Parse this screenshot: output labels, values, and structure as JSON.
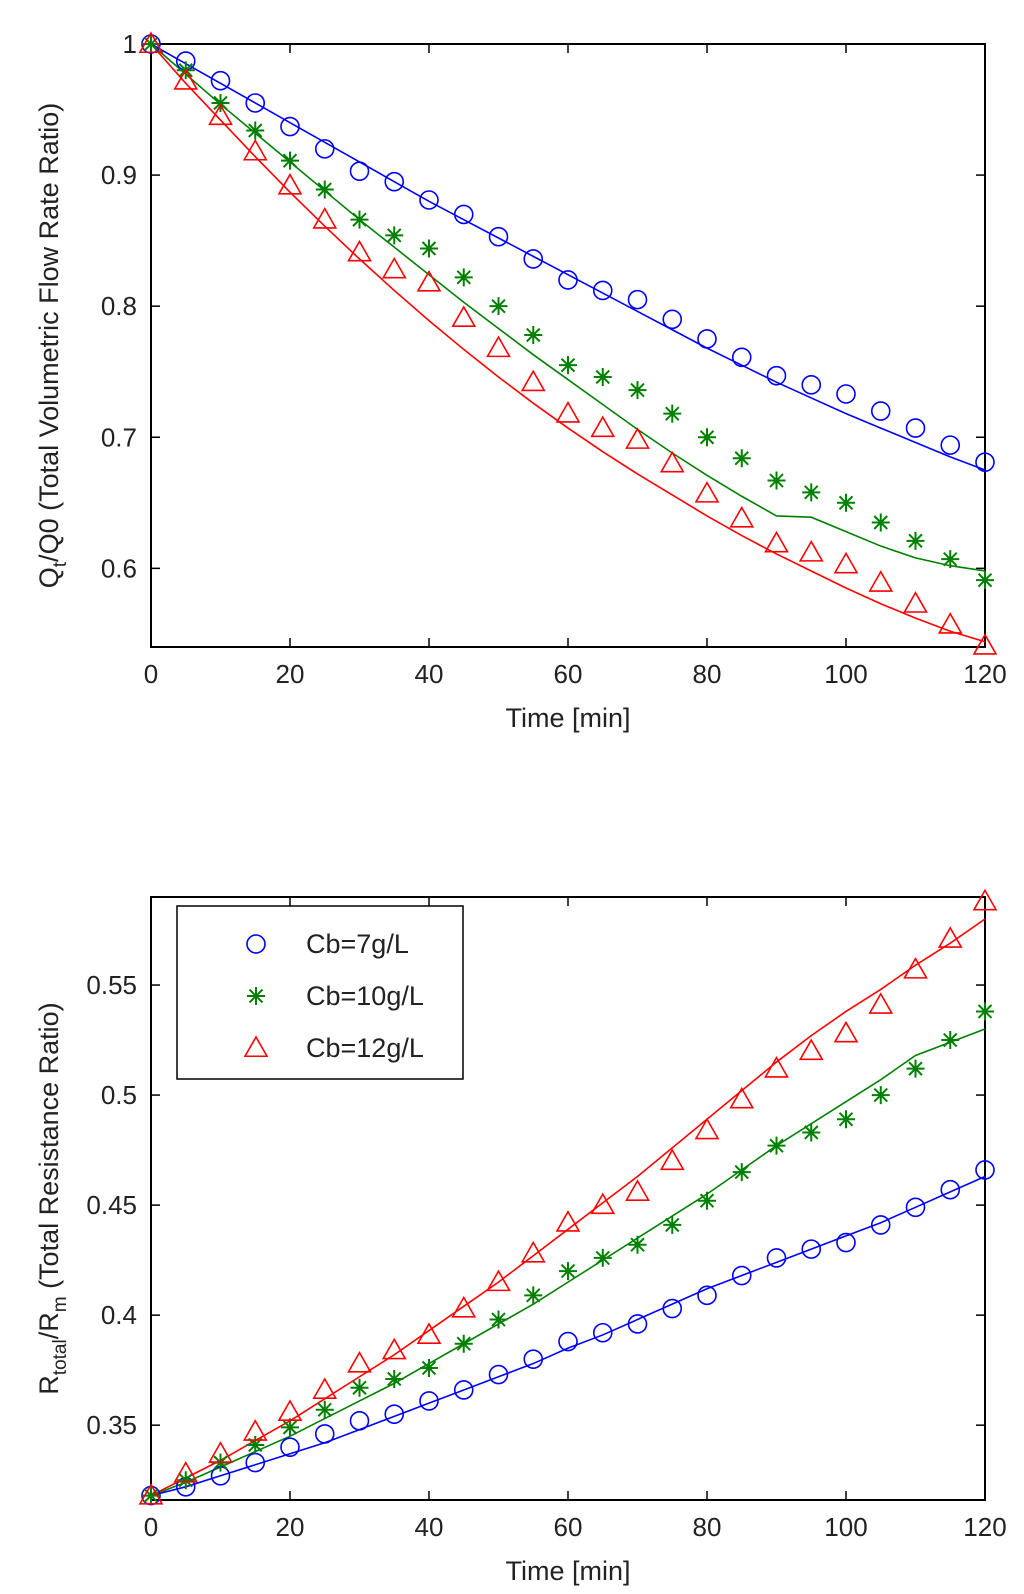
{
  "chart_data": [
    {
      "type": "line",
      "title": "",
      "xlabel": "Time [min]",
      "ylabel": "Qt/Q0 (Total Volumetric Flow Rate Ratio)",
      "ylabel_parts": {
        "main": "Q",
        "sub": "t",
        "rest": "/Q0 (Total Volumetric Flow Rate Ratio)"
      },
      "xlim": [
        0,
        120
      ],
      "ylim": [
        0.54,
        1.0
      ],
      "xticks": [
        0,
        20,
        40,
        60,
        80,
        100,
        120
      ],
      "xtick_labels": [
        "0",
        "20",
        "40",
        "60",
        "80",
        "100",
        "120"
      ],
      "yticks": [
        0.6,
        0.7,
        0.8,
        0.9,
        1.0
      ],
      "ytick_labels": [
        "0.6",
        "0.7",
        "0.8",
        "0.9",
        "1"
      ],
      "grid": false,
      "legend": null,
      "x": [
        0,
        5,
        10,
        15,
        20,
        25,
        30,
        35,
        40,
        45,
        50,
        55,
        60,
        65,
        70,
        75,
        80,
        85,
        90,
        95,
        100,
        105,
        110,
        115,
        120
      ],
      "series": [
        {
          "name": "Cb=7g/L",
          "color": "#0000ff",
          "marker": "circle",
          "values": [
            1.0,
            0.987,
            0.972,
            0.955,
            0.937,
            0.92,
            0.903,
            0.895,
            0.881,
            0.87,
            0.853,
            0.836,
            0.82,
            0.812,
            0.805,
            0.79,
            0.775,
            0.761,
            0.747,
            0.74,
            0.733,
            0.72,
            0.707,
            0.694,
            0.681
          ],
          "fit": [
            1.0,
            0.985,
            0.97,
            0.955,
            0.94,
            0.925,
            0.91,
            0.895,
            0.88,
            0.866,
            0.852,
            0.838,
            0.824,
            0.81,
            0.796,
            0.782,
            0.768,
            0.755,
            0.742,
            0.73,
            0.718,
            0.707,
            0.696,
            0.685,
            0.675
          ]
        },
        {
          "name": "Cb=10g/L",
          "color": "#008000",
          "marker": "star",
          "values": [
            1.0,
            0.98,
            0.955,
            0.934,
            0.911,
            0.889,
            0.866,
            0.854,
            0.844,
            0.822,
            0.8,
            0.778,
            0.755,
            0.746,
            0.736,
            0.718,
            0.7,
            0.684,
            0.667,
            0.658,
            0.65,
            0.635,
            0.621,
            0.607,
            0.591
          ],
          "fit": [
            1.0,
            0.977,
            0.954,
            0.932,
            0.91,
            0.888,
            0.866,
            0.845,
            0.824,
            0.803,
            0.783,
            0.763,
            0.744,
            0.725,
            0.706,
            0.688,
            0.671,
            0.655,
            0.64,
            0.639,
            0.628,
            0.617,
            0.608,
            0.602,
            0.598
          ]
        },
        {
          "name": "Cb=12g/L",
          "color": "#ff0000",
          "marker": "triangle",
          "values": [
            1.0,
            0.972,
            0.945,
            0.918,
            0.892,
            0.866,
            0.841,
            0.828,
            0.818,
            0.791,
            0.768,
            0.742,
            0.718,
            0.707,
            0.698,
            0.68,
            0.657,
            0.638,
            0.619,
            0.612,
            0.603,
            0.589,
            0.573,
            0.557,
            0.541
          ],
          "fit": [
            1.0,
            0.97,
            0.942,
            0.914,
            0.887,
            0.861,
            0.836,
            0.812,
            0.789,
            0.767,
            0.746,
            0.726,
            0.707,
            0.689,
            0.672,
            0.656,
            0.64,
            0.625,
            0.611,
            0.598,
            0.585,
            0.573,
            0.562,
            0.552,
            0.544
          ]
        }
      ]
    },
    {
      "type": "line",
      "title": "",
      "xlabel": "Time [min]",
      "ylabel": "Rtotal/Rm (Total Resistance Ratio)",
      "ylabel_parts": {
        "main": "R",
        "sub": "total",
        "mid": "/R",
        "sub2": "m",
        "rest": " (Total Resistance Ratio)"
      },
      "xlim": [
        0,
        120
      ],
      "ylim": [
        0.316,
        0.59
      ],
      "xticks": [
        0,
        20,
        40,
        60,
        80,
        100,
        120
      ],
      "xtick_labels": [
        "0",
        "20",
        "40",
        "60",
        "80",
        "100",
        "120"
      ],
      "yticks": [
        0.35,
        0.4,
        0.45,
        0.5,
        0.55
      ],
      "ytick_labels": [
        "0.35",
        "0.4",
        "0.45",
        "0.5",
        "0.55"
      ],
      "grid": false,
      "legend": "top-left",
      "x": [
        0,
        5,
        10,
        15,
        20,
        25,
        30,
        35,
        40,
        45,
        50,
        55,
        60,
        65,
        70,
        75,
        80,
        85,
        90,
        95,
        100,
        105,
        110,
        115,
        120
      ],
      "series": [
        {
          "name": "Cb=7g/L",
          "label": "Cb=7g/L",
          "color": "#0000ff",
          "marker": "circle",
          "values": [
            0.318,
            0.322,
            0.327,
            0.333,
            0.34,
            0.346,
            0.352,
            0.355,
            0.361,
            0.366,
            0.373,
            0.38,
            0.388,
            0.392,
            0.396,
            0.403,
            0.409,
            0.418,
            0.426,
            0.43,
            0.433,
            0.441,
            0.449,
            0.457,
            0.466
          ],
          "fit": [
            0.318,
            0.322,
            0.327,
            0.332,
            0.337,
            0.342,
            0.348,
            0.354,
            0.36,
            0.366,
            0.372,
            0.378,
            0.385,
            0.391,
            0.398,
            0.405,
            0.412,
            0.418,
            0.424,
            0.43,
            0.436,
            0.442,
            0.449,
            0.456,
            0.463
          ]
        },
        {
          "name": "Cb=10g/L",
          "label": "Cb=10g/L",
          "color": "#008000",
          "marker": "star",
          "values": [
            0.318,
            0.325,
            0.333,
            0.341,
            0.349,
            0.357,
            0.367,
            0.371,
            0.376,
            0.387,
            0.398,
            0.409,
            0.42,
            0.426,
            0.432,
            0.441,
            0.452,
            0.465,
            0.477,
            0.483,
            0.489,
            0.5,
            0.512,
            0.525,
            0.538
          ],
          "fit": [
            0.318,
            0.324,
            0.331,
            0.338,
            0.345,
            0.353,
            0.361,
            0.369,
            0.378,
            0.387,
            0.396,
            0.405,
            0.415,
            0.425,
            0.435,
            0.445,
            0.455,
            0.466,
            0.477,
            0.487,
            0.497,
            0.507,
            0.518,
            0.524,
            0.53
          ]
        },
        {
          "name": "Cb=12g/L",
          "label": "Cb=12g/L",
          "color": "#ff0000",
          "marker": "triangle",
          "values": [
            0.318,
            0.328,
            0.337,
            0.347,
            0.356,
            0.366,
            0.378,
            0.384,
            0.391,
            0.403,
            0.415,
            0.428,
            0.442,
            0.45,
            0.456,
            0.47,
            0.484,
            0.498,
            0.512,
            0.52,
            0.528,
            0.541,
            0.557,
            0.571,
            0.588
          ],
          "fit": [
            0.318,
            0.326,
            0.334,
            0.343,
            0.352,
            0.362,
            0.372,
            0.382,
            0.393,
            0.404,
            0.415,
            0.427,
            0.439,
            0.451,
            0.463,
            0.476,
            0.489,
            0.502,
            0.515,
            0.527,
            0.538,
            0.548,
            0.559,
            0.569,
            0.58
          ]
        }
      ]
    }
  ]
}
